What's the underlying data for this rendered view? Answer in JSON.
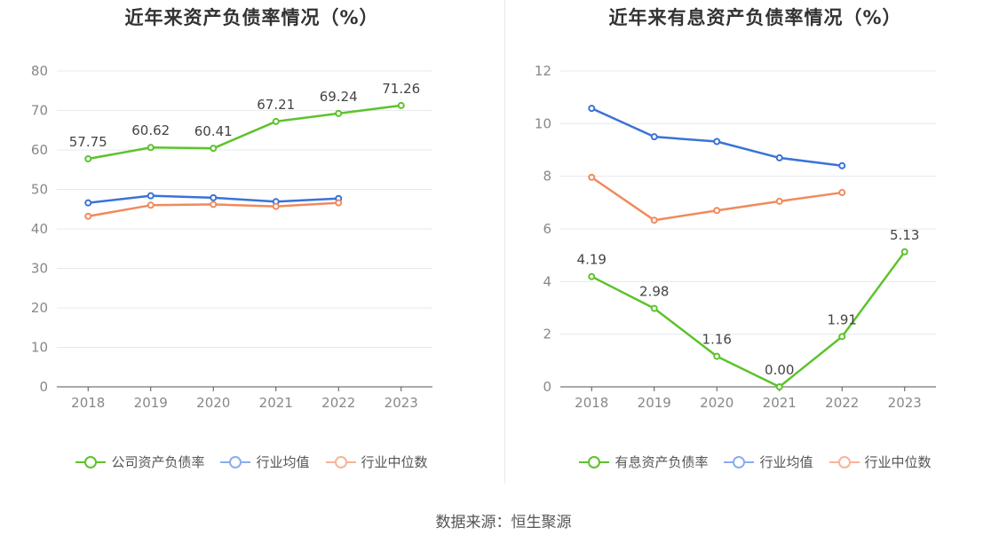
{
  "source_label": "数据来源：恒生聚源",
  "colors": {
    "company": "#5cc32b",
    "avg": "#3a72d8",
    "median": "#f08a5d",
    "avg_legend": "#8aadf0",
    "median_legend": "#f5b59a"
  },
  "chart_data": [
    {
      "type": "line",
      "title": "近年来资产负债率情况（%）",
      "categories": [
        "2018",
        "2019",
        "2020",
        "2021",
        "2022",
        "2023"
      ],
      "ylim": [
        0,
        80
      ],
      "yticks": [
        0,
        10,
        20,
        30,
        40,
        50,
        60,
        70,
        80
      ],
      "grid": true,
      "legend_position": "bottom",
      "series": [
        {
          "name": "公司资产负债率",
          "values": [
            57.75,
            60.62,
            60.41,
            67.21,
            69.24,
            71.26
          ],
          "labels": [
            "57.75",
            "60.62",
            "60.41",
            "67.21",
            "69.24",
            "71.26"
          ],
          "color": "#5cc32b",
          "legend_color": "#5cc32b"
        },
        {
          "name": "行业均值",
          "values": [
            46.6,
            48.4,
            47.9,
            46.9,
            47.7,
            null
          ],
          "color": "#3a72d8",
          "legend_color": "#8aadf0"
        },
        {
          "name": "行业中位数",
          "values": [
            43.2,
            46.0,
            46.2,
            45.7,
            46.6,
            null
          ],
          "color": "#f08a5d",
          "legend_color": "#f5b59a"
        }
      ]
    },
    {
      "type": "line",
      "title": "近年来有息资产负债率情况（%）",
      "categories": [
        "2018",
        "2019",
        "2020",
        "2021",
        "2022",
        "2023"
      ],
      "ylim": [
        0,
        12
      ],
      "yticks": [
        0,
        2,
        4,
        6,
        8,
        10,
        12
      ],
      "grid": true,
      "legend_position": "bottom",
      "series": [
        {
          "name": "有息资产负债率",
          "values": [
            4.19,
            2.98,
            1.16,
            0.0,
            1.91,
            5.13
          ],
          "labels": [
            "4.19",
            "2.98",
            "1.16",
            "0.00",
            "1.91",
            "5.13"
          ],
          "color": "#5cc32b",
          "legend_color": "#5cc32b"
        },
        {
          "name": "行业均值",
          "values": [
            10.58,
            9.5,
            9.32,
            8.7,
            8.4,
            null
          ],
          "color": "#3a72d8",
          "legend_color": "#8aadf0"
        },
        {
          "name": "行业中位数",
          "values": [
            7.96,
            6.33,
            6.7,
            7.05,
            7.38,
            null
          ],
          "color": "#f08a5d",
          "legend_color": "#f5b59a"
        }
      ]
    }
  ]
}
